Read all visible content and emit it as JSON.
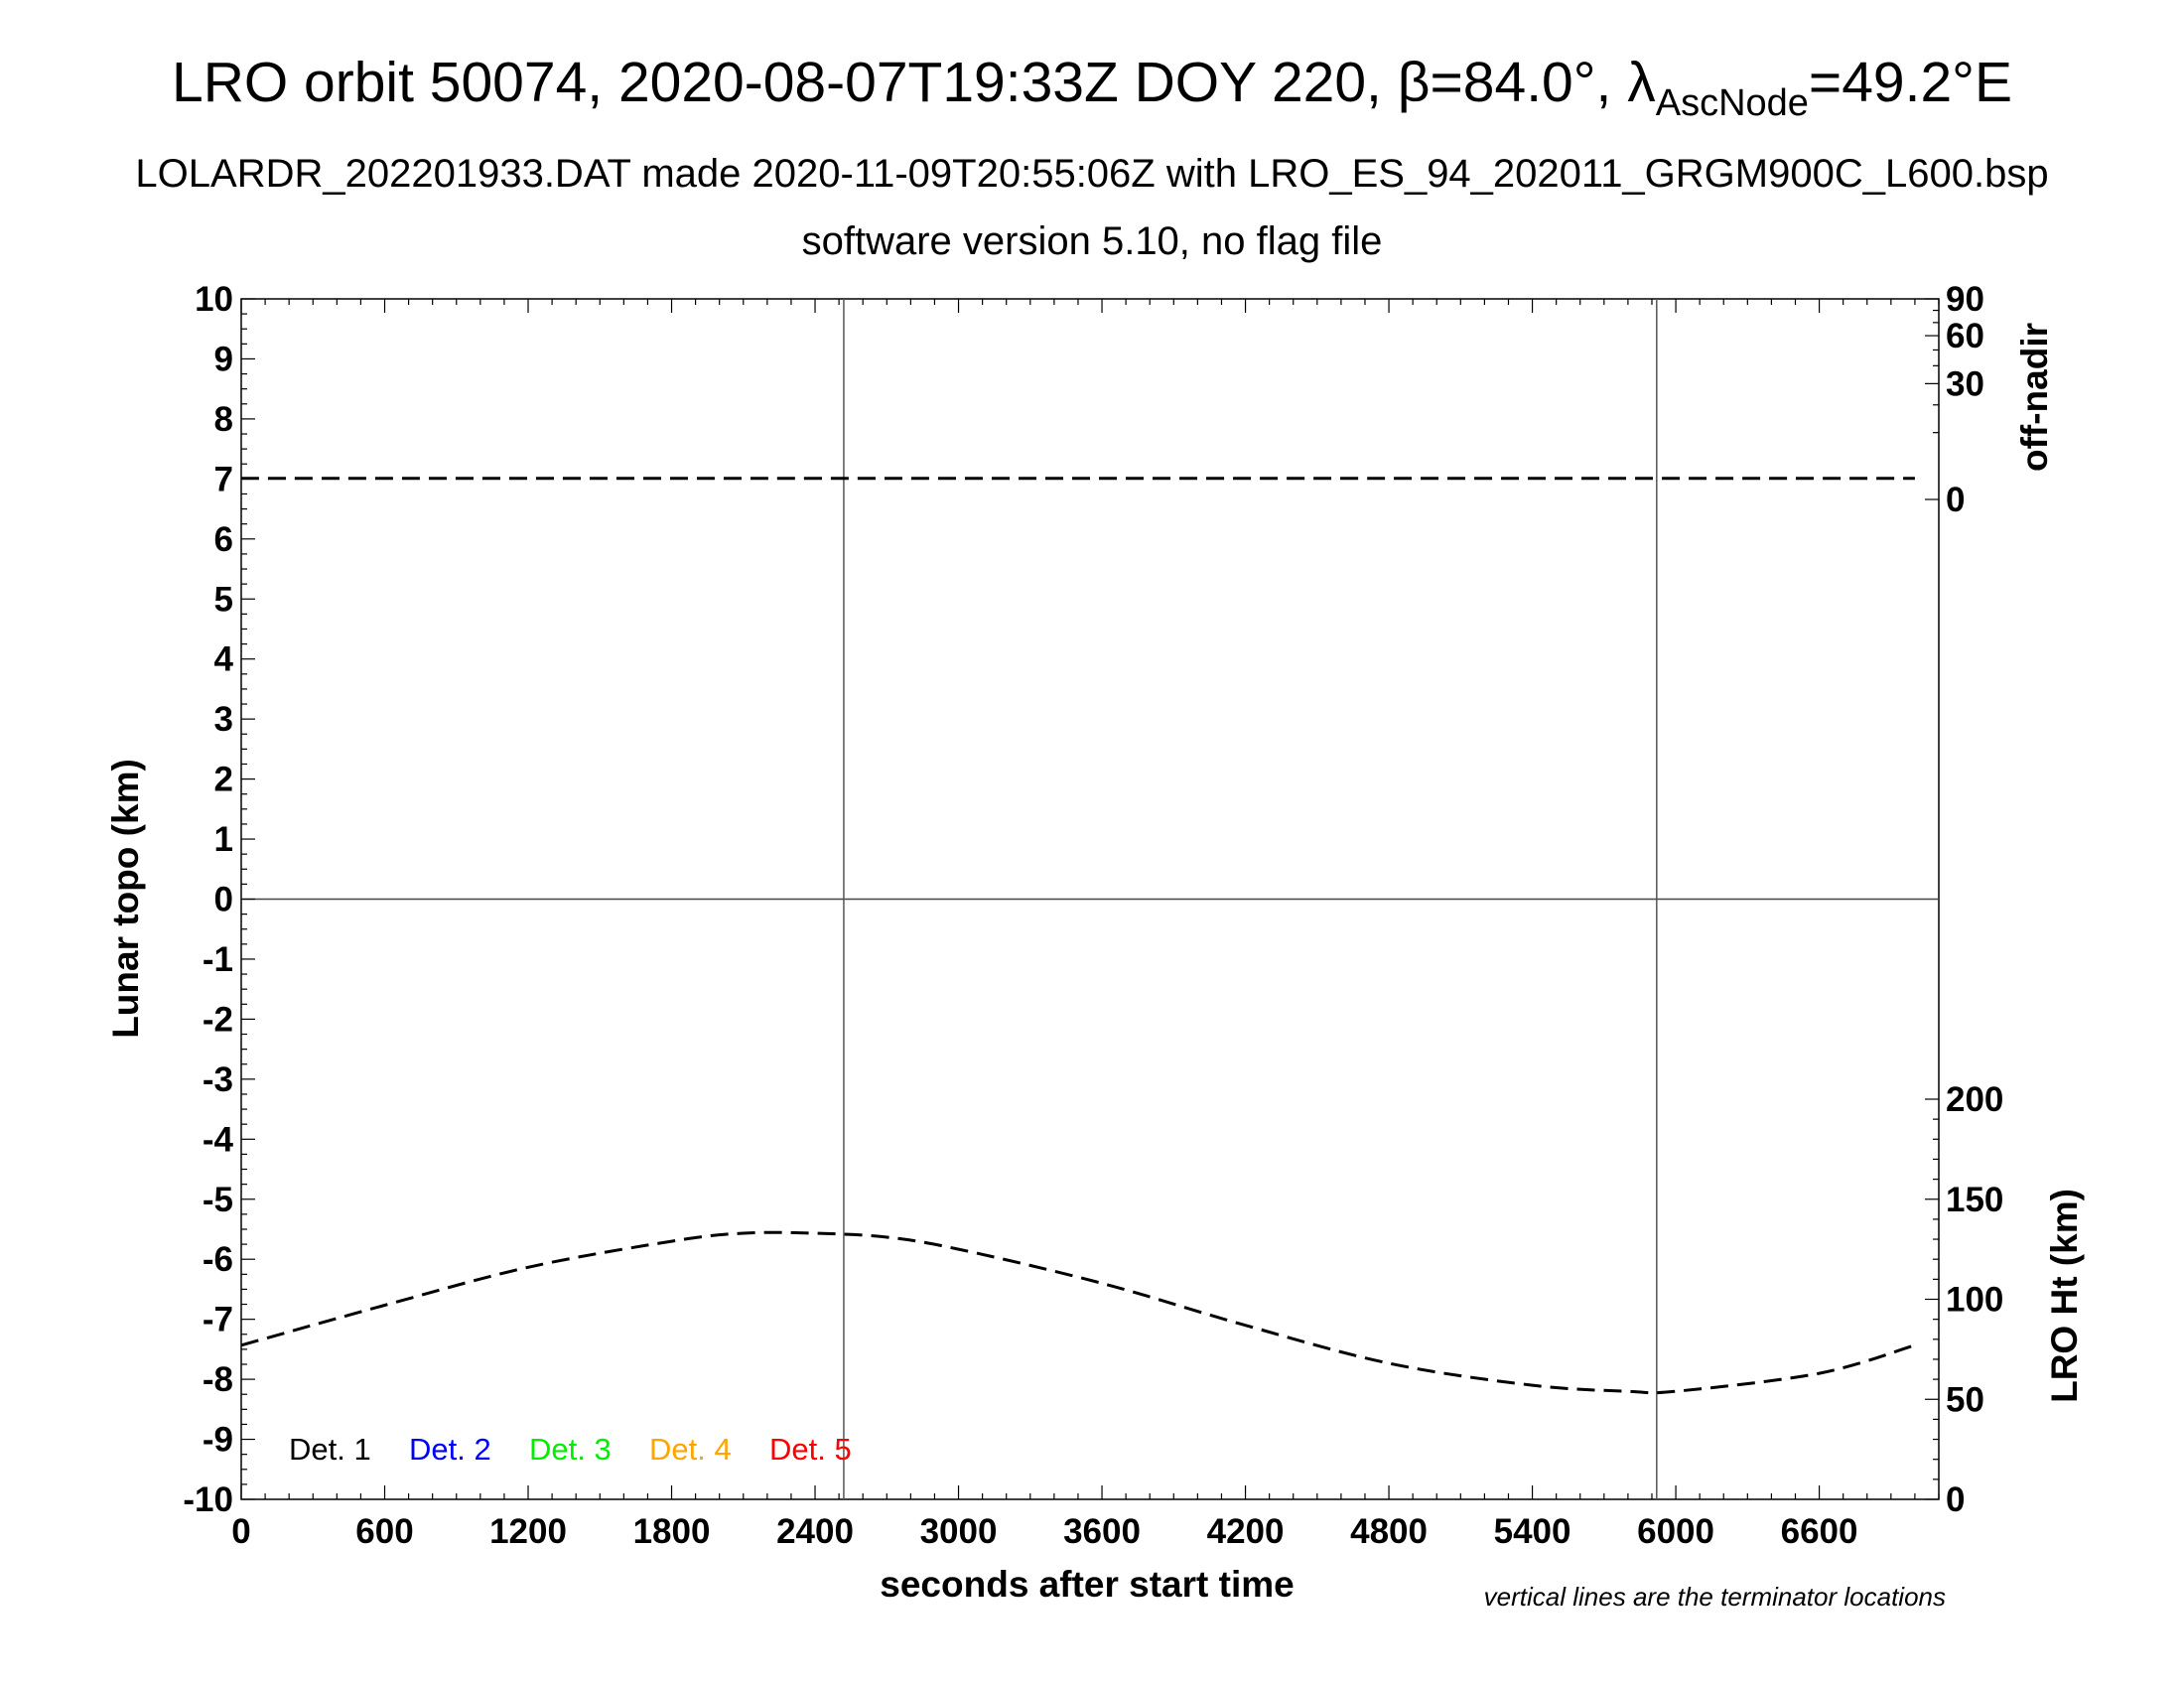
{
  "title": {
    "main": "LRO orbit 50074, 2020-08-07T19:33Z DOY 220, β=84.0°, λ",
    "sub": "AscNode",
    "tail": "=49.2°E"
  },
  "subtitle_line1": "LOLARDR_202201933.DAT made 2020-11-09T20:55:06Z with LRO_ES_94_202011_GRGM900C_L600.bsp",
  "subtitle_line2": "software version 5.10, no flag file",
  "note": "vertical lines are the terminator locations",
  "colors": {
    "det1": "#000000",
    "det2": "#0000ff",
    "det3": "#00ee00",
    "det4": "#ffa500",
    "det5": "#ff0000"
  },
  "chart_data": {
    "type": "line",
    "x_axis": {
      "label": "seconds after start time",
      "range": [
        0,
        7100
      ],
      "ticks": [
        0,
        600,
        1200,
        1800,
        2400,
        3000,
        3600,
        4200,
        4800,
        5400,
        6000,
        6600
      ]
    },
    "y_axis_left": {
      "label": "Lunar topo (km)",
      "range": [
        -10,
        10
      ],
      "ticks": [
        -10,
        -9,
        -8,
        -7,
        -6,
        -5,
        -4,
        -3,
        -2,
        -1,
        0,
        1,
        2,
        3,
        4,
        5,
        6,
        7,
        8,
        9,
        10
      ]
    },
    "y_axis_right_top": {
      "label": "off-nadir",
      "ticks": [
        0,
        30,
        60,
        90
      ]
    },
    "y_axis_right_bottom": {
      "label": "LRO Ht (km)",
      "range": [
        0,
        200
      ],
      "ticks": [
        0,
        50,
        100,
        150,
        200
      ]
    },
    "terminator_lines_x": [
      2520,
      5920
    ],
    "series": [
      {
        "name": "LRO Ht (km)",
        "style": "dashed",
        "x": [
          0,
          600,
          1200,
          1800,
          2100,
          2400,
          2700,
          3000,
          3600,
          4200,
          4800,
          5400,
          5800,
          6000,
          6600,
          7000
        ],
        "y": [
          77,
          97,
          116,
          129,
          133,
          133,
          131,
          125,
          108,
          87,
          68,
          57,
          54,
          54,
          63,
          77
        ]
      },
      {
        "name": "off-nadir",
        "style": "dashed",
        "x": [
          0,
          7000
        ],
        "y": [
          1,
          1
        ]
      }
    ],
    "legend": {
      "position": "bottom-left",
      "entries": [
        "Det. 1",
        "Det. 2",
        "Det. 3",
        "Det. 4",
        "Det. 5"
      ]
    },
    "grid": false
  }
}
